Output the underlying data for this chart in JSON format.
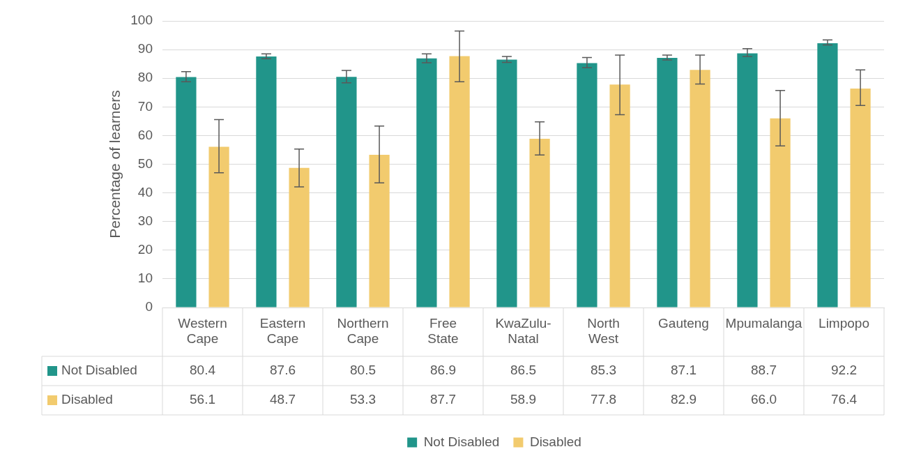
{
  "chart_data": {
    "type": "bar",
    "ylabel": "Percentage of learners",
    "categories": [
      "Western Cape",
      "Eastern Cape",
      "Northern Cape",
      "Free State",
      "KwaZulu-Natal",
      "North West",
      "Gauteng",
      "Mpumalanga",
      "Limpopo"
    ],
    "series": [
      {
        "name": "Not Disabled",
        "color": "#21958a",
        "values": [
          80.4,
          87.6,
          80.5,
          86.9,
          86.5,
          85.3,
          87.1,
          88.7,
          92.2
        ],
        "errors": [
          [
            78.8,
            82.3
          ],
          [
            86.8,
            88.5
          ],
          [
            78.4,
            82.7
          ],
          [
            85.4,
            88.5
          ],
          [
            85.5,
            87.6
          ],
          [
            83.7,
            87.2
          ],
          [
            86.4,
            88.1
          ],
          [
            87.6,
            90.3
          ],
          [
            91.6,
            93.4
          ]
        ]
      },
      {
        "name": "Disabled",
        "color": "#f2cb6e",
        "values": [
          56.1,
          48.7,
          53.3,
          87.7,
          58.9,
          77.8,
          82.9,
          66.0,
          76.4
        ],
        "value_labels": [
          "56.1",
          "48.7",
          "53.3",
          "87.7",
          "58.9",
          "77.8",
          "82.9",
          "66.0",
          "76.4"
        ],
        "errors": [
          [
            47.0,
            65.6
          ],
          [
            42.1,
            55.3
          ],
          [
            43.5,
            63.3
          ],
          [
            78.8,
            96.5
          ],
          [
            53.2,
            64.8
          ],
          [
            67.3,
            88.1
          ],
          [
            78.0,
            88.1
          ],
          [
            56.4,
            75.7
          ],
          [
            70.5,
            82.9
          ]
        ]
      }
    ],
    "ylim": [
      0,
      100
    ],
    "yticks": [
      0,
      10,
      20,
      30,
      40,
      50,
      60,
      70,
      80,
      90,
      100
    ],
    "data_labels": true,
    "grid": "y",
    "legend": "bottom"
  }
}
